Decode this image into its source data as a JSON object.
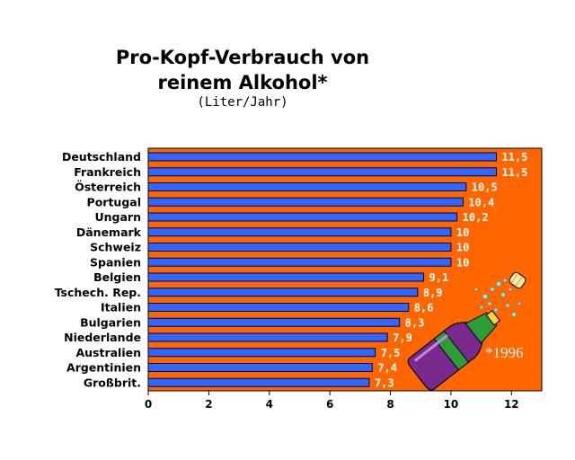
{
  "chart_data": {
    "type": "bar",
    "orientation": "horizontal",
    "title_lines": [
      "Pro-Kopf-Verbrauch von",
      "reinem Alkohol*"
    ],
    "subtitle": "(Liter/Jahr)",
    "categories": [
      "Deutschland",
      "Frankreich",
      "Österreich",
      "Portugal",
      "Ungarn",
      "Dänemark",
      "Schweiz",
      "Spanien",
      "Belgien",
      "Tschech. Rep.",
      "Italien",
      "Bulgarien",
      "Niederlande",
      "Australien",
      "Argentinien",
      "Großbrit."
    ],
    "values": [
      11.5,
      11.5,
      10.5,
      10.4,
      10.2,
      10,
      10,
      10,
      9.1,
      8.9,
      8.6,
      8.3,
      7.9,
      7.5,
      7.4,
      7.3
    ],
    "value_labels": [
      "11,5",
      "11,5",
      "10,5",
      "10,4",
      "10,2",
      "10",
      "10",
      "10",
      "9,1",
      "8,9",
      "8,6",
      "8,3",
      "7,9",
      "7,5",
      "7,4",
      "7,3"
    ],
    "xlim": [
      0,
      13
    ],
    "xticks": [
      0,
      2,
      4,
      6,
      8,
      10,
      12
    ],
    "annotation": "*1996",
    "grid": false,
    "legend": "none",
    "colors": {
      "plot_background": "#ff6600",
      "bar": "#3366ff",
      "bar_outline": "#000033",
      "value_label": "#ffffff"
    },
    "illustration": "champagne-bottle-icon"
  }
}
